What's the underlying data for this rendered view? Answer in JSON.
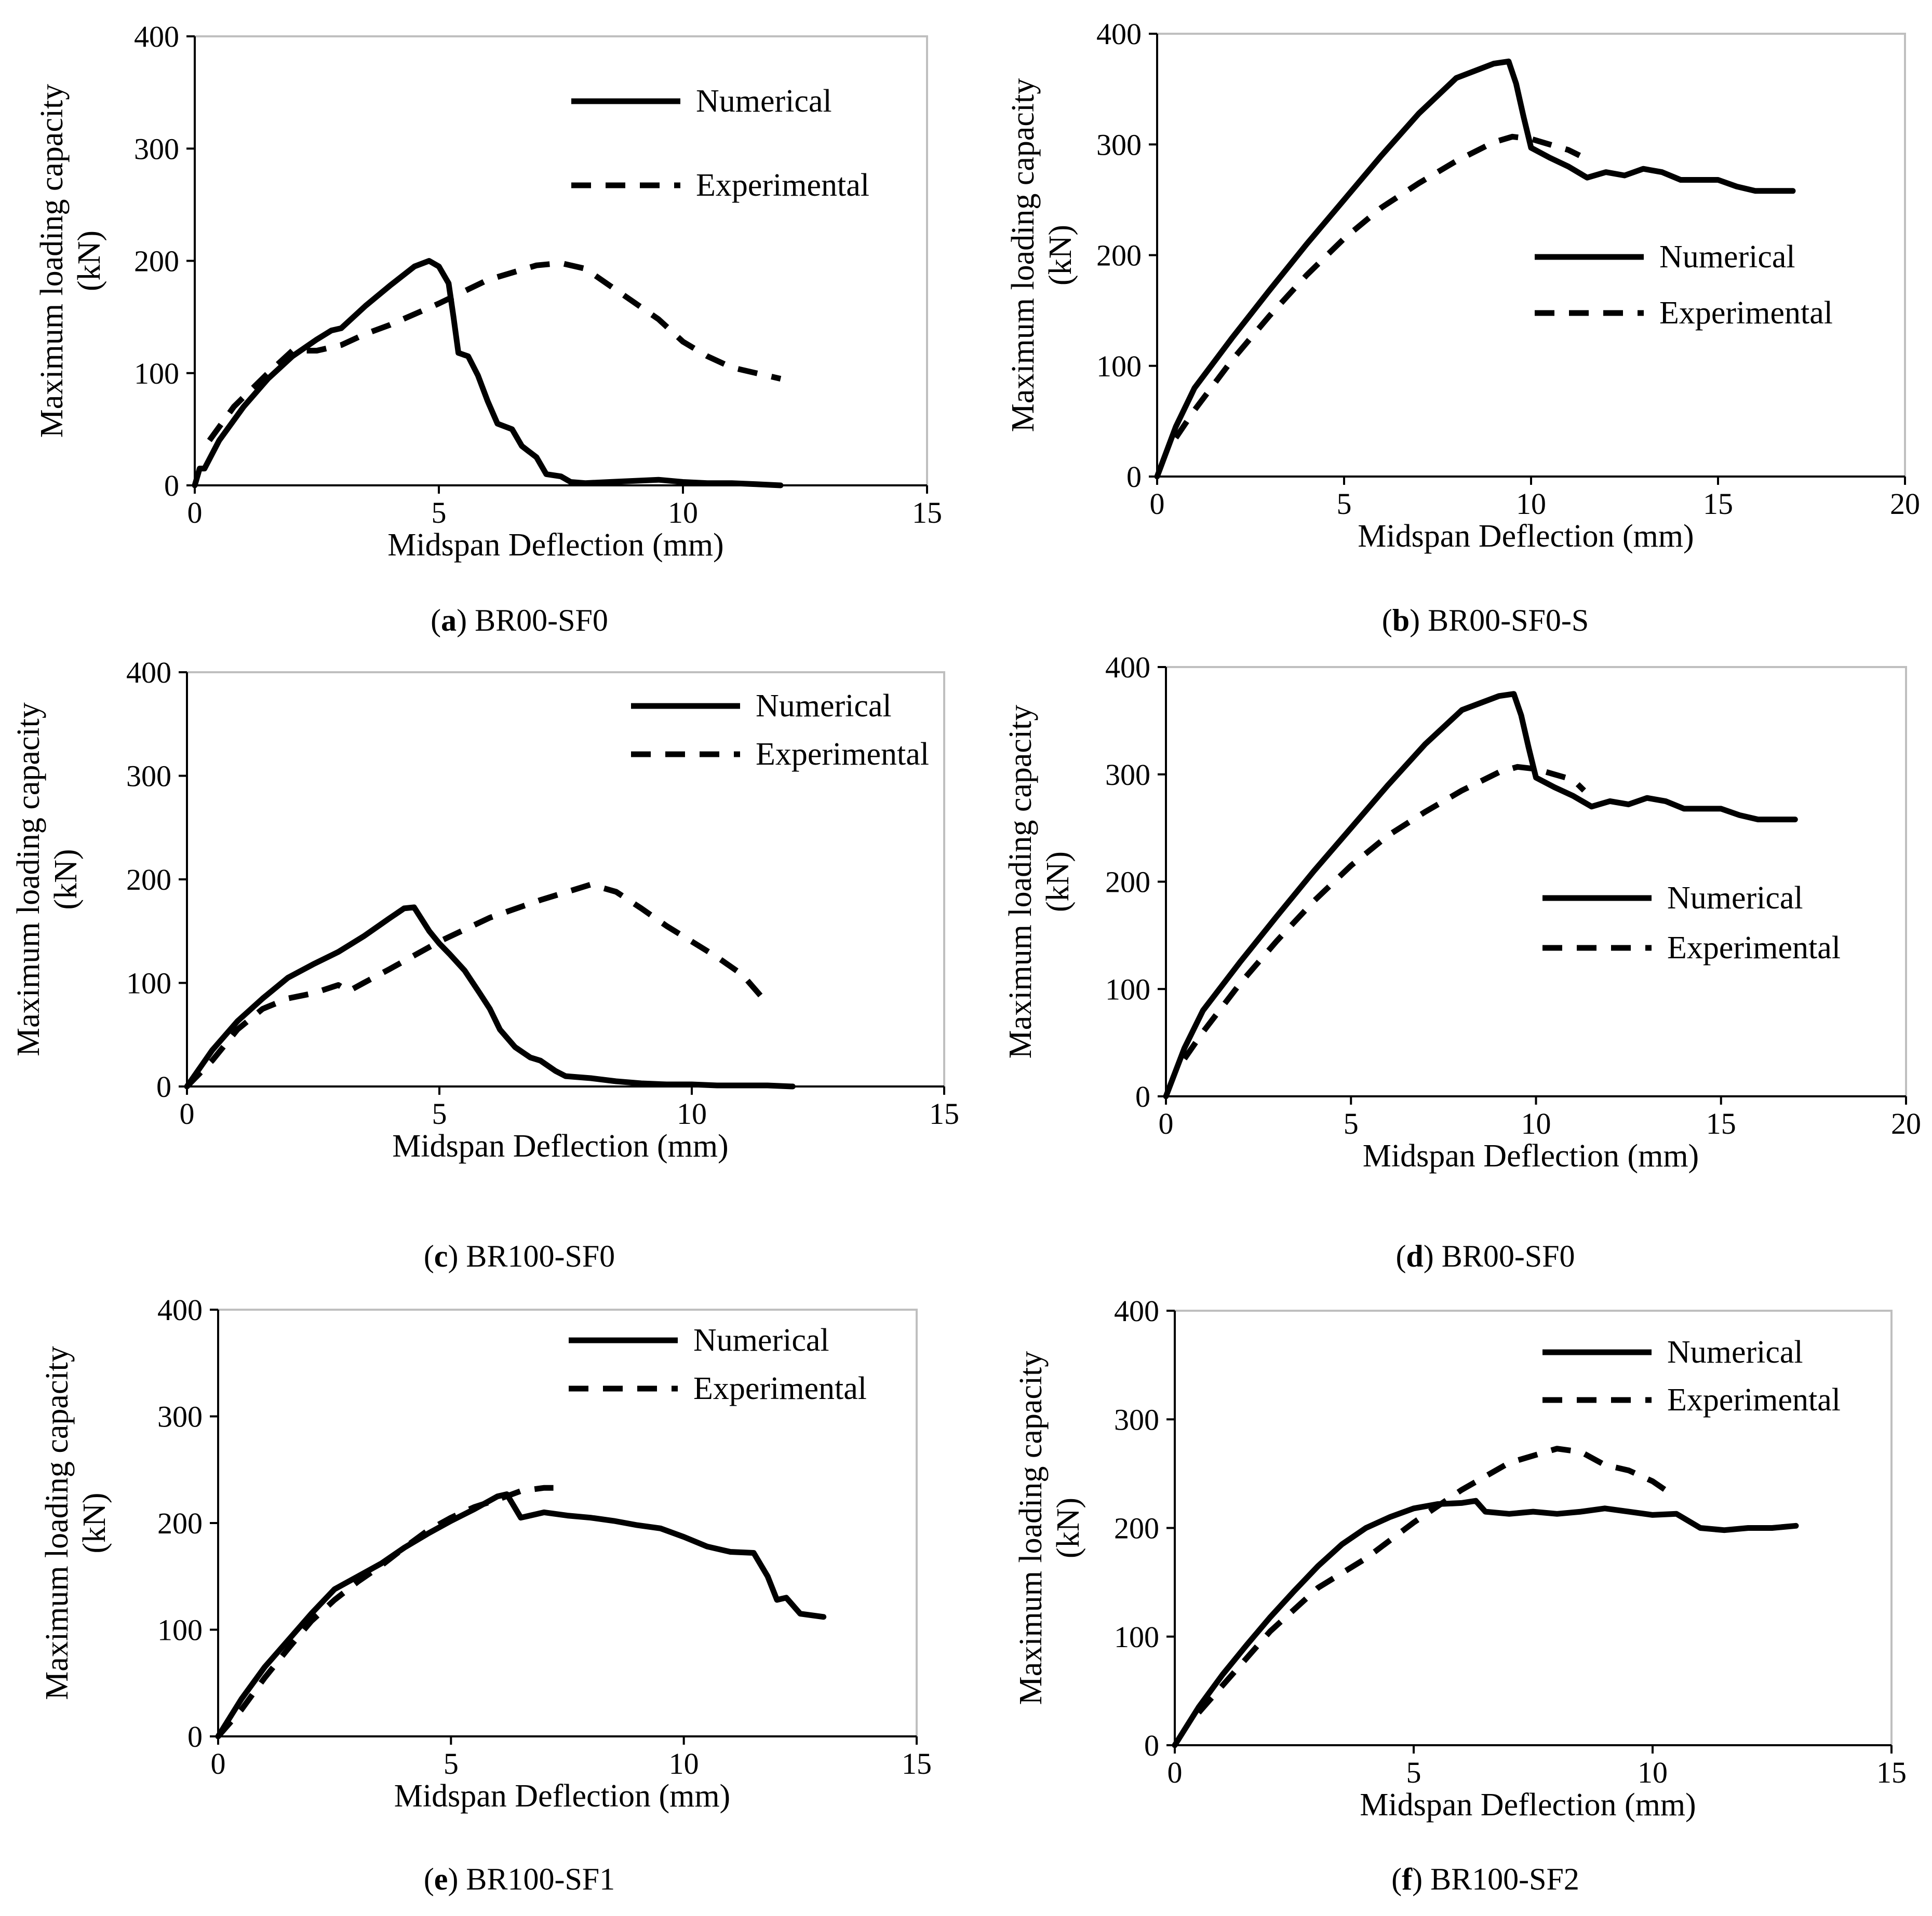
{
  "colors": {
    "line": "#000000",
    "frame": "#bfbfbf",
    "background": "#ffffff"
  },
  "chart_data": [
    {
      "type": "line",
      "caption_letter": "a",
      "caption_text": " BR00-SF0",
      "xlabel": "Midspan Deflection (mm)",
      "ylabel_line1": "Maximum loading capacity",
      "ylabel_line2": "(kN)",
      "xlim": [
        0,
        15
      ],
      "ylim": [
        0,
        400
      ],
      "xticks": [
        0,
        5,
        10,
        15
      ],
      "yticks": [
        0,
        100,
        200,
        300,
        400
      ],
      "legend_position": "top-right",
      "series": [
        {
          "name": "Numerical",
          "style": "solid",
          "x": [
            0,
            0.1,
            0.2,
            0.5,
            1,
            1.5,
            2,
            2.5,
            2.8,
            3,
            3.5,
            4,
            4.5,
            4.8,
            5,
            5.2,
            5.3,
            5.4,
            5.6,
            5.8,
            6,
            6.2,
            6.5,
            6.7,
            7,
            7.2,
            7.5,
            7.7,
            8,
            8.5,
            9,
            9.5,
            10,
            10.5,
            11,
            11.5,
            12
          ],
          "y": [
            0,
            15,
            15,
            40,
            70,
            95,
            115,
            130,
            138,
            140,
            160,
            178,
            195,
            200,
            195,
            180,
            150,
            118,
            115,
            98,
            75,
            55,
            50,
            35,
            25,
            10,
            8,
            3,
            2,
            3,
            4,
            5,
            3,
            2,
            2,
            1,
            0
          ]
        },
        {
          "name": "Experimental",
          "style": "dashed",
          "x": [
            0.3,
            0.8,
            1.5,
            2,
            2.5,
            3,
            3.5,
            4,
            5,
            6,
            7,
            7.5,
            8,
            8.5,
            9,
            9.5,
            10,
            10.5,
            11,
            11.5,
            12
          ],
          "y": [
            40,
            70,
            100,
            120,
            120,
            125,
            135,
            143,
            162,
            183,
            196,
            198,
            193,
            178,
            163,
            148,
            128,
            115,
            105,
            100,
            95
          ]
        }
      ]
    },
    {
      "type": "line",
      "caption_letter": "b",
      "caption_text": " BR00-SF0-S",
      "xlabel": "Midspan Deflection (mm)",
      "ylabel_line1": "Maximum loading capacity",
      "ylabel_line2": "(kN)",
      "xlim": [
        0,
        20
      ],
      "ylim": [
        0,
        400
      ],
      "xticks": [
        0,
        5,
        10,
        15,
        20
      ],
      "yticks": [
        0,
        100,
        200,
        300,
        400
      ],
      "legend_position": "center-right",
      "series": [
        {
          "name": "Numerical",
          "style": "solid",
          "x": [
            0,
            0.5,
            1,
            2,
            3,
            4,
            5,
            6,
            7,
            8,
            9,
            9.4,
            9.6,
            9.8,
            10,
            10.5,
            11,
            11.5,
            12,
            12.5,
            13,
            13.5,
            14,
            14.5,
            15,
            15.5,
            16,
            16.5,
            17
          ],
          "y": [
            0,
            45,
            80,
            125,
            168,
            210,
            250,
            290,
            328,
            360,
            373,
            375,
            355,
            325,
            297,
            288,
            280,
            270,
            275,
            272,
            278,
            275,
            268,
            268,
            268,
            262,
            258,
            258,
            258
          ]
        },
        {
          "name": "Experimental",
          "style": "dashed",
          "x": [
            0.5,
            1,
            2,
            3,
            4,
            5,
            6,
            7,
            8,
            9,
            9.5,
            10,
            10.5,
            11,
            11.3
          ],
          "y": [
            35,
            60,
            105,
            145,
            182,
            215,
            243,
            265,
            285,
            302,
            307,
            305,
            300,
            295,
            290
          ]
        }
      ]
    },
    {
      "type": "line",
      "caption_letter": "c",
      "caption_text": " BR100-SF0",
      "xlabel": "Midspan Deflection (mm)",
      "ylabel_line1": "Maximum loading capacity",
      "ylabel_line2": "(kN)",
      "xlim": [
        0,
        15
      ],
      "ylim": [
        0,
        400
      ],
      "xticks": [
        0,
        5,
        10,
        15
      ],
      "yticks": [
        0,
        100,
        200,
        300,
        400
      ],
      "legend_position": "top-right",
      "series": [
        {
          "name": "Numerical",
          "style": "solid",
          "x": [
            0,
            0.5,
            1,
            1.5,
            2,
            2.5,
            3,
            3.5,
            4,
            4.3,
            4.5,
            4.8,
            5,
            5.2,
            5.5,
            5.8,
            6,
            6.2,
            6.5,
            6.8,
            7,
            7.3,
            7.5,
            8,
            8.5,
            9,
            9.5,
            10,
            10.5,
            11,
            11.5,
            12
          ],
          "y": [
            0,
            35,
            63,
            85,
            105,
            118,
            130,
            145,
            162,
            172,
            173,
            150,
            138,
            128,
            112,
            90,
            75,
            55,
            38,
            28,
            25,
            15,
            10,
            8,
            5,
            3,
            2,
            2,
            1,
            1,
            1,
            0
          ]
        },
        {
          "name": "Experimental",
          "style": "dashed",
          "x": [
            0,
            0.5,
            1,
            1.5,
            2,
            2.5,
            3,
            3.2,
            3.5,
            4,
            5,
            6,
            7,
            8,
            8.5,
            9,
            9.5,
            10,
            10.5,
            11,
            11.5
          ],
          "y": [
            0,
            25,
            55,
            75,
            85,
            90,
            98,
            92,
            100,
            113,
            140,
            163,
            180,
            195,
            188,
            172,
            155,
            140,
            125,
            108,
            80
          ]
        }
      ]
    },
    {
      "type": "line",
      "caption_letter": "d",
      "caption_text": " BR00-SF0",
      "xlabel": "Midspan Deflection (mm)",
      "ylabel_line1": "Maximum loading capacity",
      "ylabel_line2": "(kN)",
      "xlim": [
        0,
        20
      ],
      "ylim": [
        0,
        400
      ],
      "xticks": [
        0,
        5,
        10,
        15,
        20
      ],
      "yticks": [
        0,
        100,
        200,
        300,
        400
      ],
      "legend_position": "center-right",
      "series": [
        {
          "name": "Numerical",
          "style": "solid",
          "x": [
            0,
            0.5,
            1,
            2,
            3,
            4,
            5,
            6,
            7,
            8,
            9,
            9.4,
            9.6,
            9.8,
            10,
            10.5,
            11,
            11.5,
            12,
            12.5,
            13,
            13.5,
            14,
            14.5,
            15,
            15.5,
            16,
            16.5,
            17
          ],
          "y": [
            0,
            45,
            80,
            125,
            168,
            210,
            250,
            290,
            328,
            360,
            373,
            375,
            355,
            325,
            297,
            288,
            280,
            270,
            275,
            272,
            278,
            275,
            268,
            268,
            268,
            262,
            258,
            258,
            258
          ]
        },
        {
          "name": "Experimental",
          "style": "dashed",
          "x": [
            0.5,
            1,
            2,
            3,
            4,
            5,
            6,
            7,
            8,
            9,
            9.5,
            10,
            10.5,
            11,
            11.3
          ],
          "y": [
            35,
            60,
            105,
            145,
            182,
            215,
            243,
            265,
            285,
            302,
            307,
            305,
            300,
            295,
            285
          ]
        }
      ]
    },
    {
      "type": "line",
      "caption_letter": "e",
      "caption_text": " BR100-SF1",
      "xlabel": "Midspan Deflection (mm)",
      "ylabel_line1": "Maximum loading capacity",
      "ylabel_line2": "(kN)",
      "xlim": [
        0,
        15
      ],
      "ylim": [
        0,
        400
      ],
      "xticks": [
        0,
        5,
        10,
        15
      ],
      "yticks": [
        0,
        100,
        200,
        300,
        400
      ],
      "legend_position": "top-right",
      "series": [
        {
          "name": "Numerical",
          "style": "solid",
          "x": [
            0,
            0.5,
            1,
            1.5,
            2,
            2.5,
            3,
            3.5,
            4,
            4.5,
            5,
            5.5,
            6,
            6.2,
            6.5,
            7,
            7.5,
            8,
            8.5,
            9,
            9.5,
            10,
            10.5,
            11,
            11.5,
            11.8,
            12,
            12.2,
            12.5,
            13
          ],
          "y": [
            0,
            35,
            65,
            90,
            115,
            138,
            150,
            162,
            177,
            190,
            202,
            213,
            225,
            227,
            205,
            210,
            207,
            205,
            202,
            198,
            195,
            187,
            178,
            173,
            172,
            150,
            128,
            130,
            115,
            112
          ]
        },
        {
          "name": "Experimental",
          "style": "dashed",
          "x": [
            0,
            0.5,
            1,
            1.5,
            2,
            2.5,
            3,
            3.5,
            4,
            4.5,
            5,
            5.5,
            6,
            6.5,
            7,
            7.2
          ],
          "y": [
            0,
            25,
            55,
            82,
            108,
            128,
            145,
            160,
            177,
            193,
            205,
            215,
            222,
            230,
            233,
            233
          ]
        }
      ]
    },
    {
      "type": "line",
      "caption_letter": "f",
      "caption_text": " BR100-SF2",
      "xlabel": "Midspan Deflection (mm)",
      "ylabel_line1": "Maximum loading capacity",
      "ylabel_line2": "(kN)",
      "xlim": [
        0,
        15
      ],
      "ylim": [
        0,
        400
      ],
      "xticks": [
        0,
        5,
        10,
        15
      ],
      "yticks": [
        0,
        100,
        200,
        300,
        400
      ],
      "legend_position": "top-right",
      "series": [
        {
          "name": "Numerical",
          "style": "solid",
          "x": [
            0,
            0.5,
            1,
            1.5,
            2,
            2.5,
            3,
            3.5,
            4,
            4.5,
            5,
            5.5,
            6,
            6.3,
            6.5,
            7,
            7.5,
            8,
            8.5,
            9,
            9.5,
            10,
            10.5,
            11,
            11.5,
            12,
            12.5,
            13
          ],
          "y": [
            0,
            35,
            65,
            92,
            118,
            142,
            165,
            185,
            200,
            210,
            218,
            222,
            223,
            225,
            215,
            213,
            215,
            213,
            215,
            218,
            215,
            212,
            213,
            200,
            198,
            200,
            200,
            202
          ]
        },
        {
          "name": "Experimental",
          "style": "dashed",
          "x": [
            0.5,
            1,
            2,
            3,
            4,
            5,
            6,
            7,
            8,
            8.5,
            9,
            9.5,
            10,
            10.5
          ],
          "y": [
            30,
            55,
            105,
            145,
            172,
            205,
            235,
            260,
            273,
            270,
            258,
            253,
            243,
            228
          ]
        }
      ]
    }
  ]
}
